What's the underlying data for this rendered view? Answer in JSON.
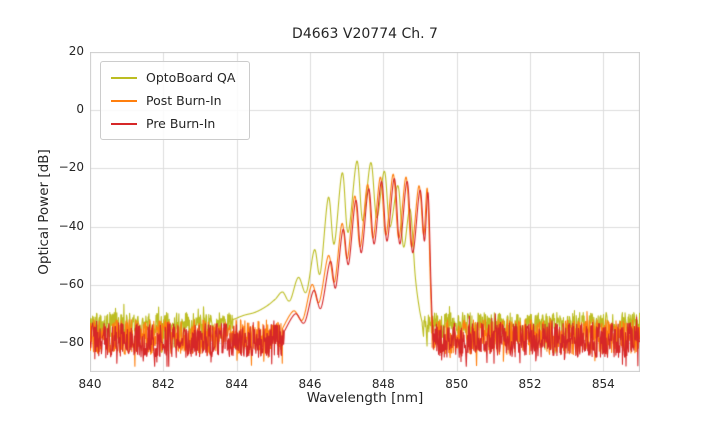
{
  "chart_data": {
    "type": "line",
    "title": "D4663 V20774 Ch. 7",
    "xlabel": "Wavelength [nm]",
    "ylabel": "Optical Power [dB]",
    "xlim": [
      840,
      855
    ],
    "ylim": [
      -90,
      20
    ],
    "xticks": [
      840,
      842,
      844,
      846,
      848,
      850,
      852,
      854
    ],
    "yticks": [
      20,
      0,
      -20,
      -40,
      -60,
      -80
    ],
    "grid": true,
    "grid_color": "#dcdcdc",
    "legend_position": "upper left",
    "series": [
      {
        "name": "OptoBoard QA",
        "color": "#bcbd22",
        "noise": {
          "floor": -74,
          "amplitude": 4.5,
          "regions": [
            [
              840,
              843.9
            ],
            [
              849.06,
              855
            ]
          ]
        },
        "profile": [
          [
            843.9,
            -72
          ],
          [
            844.2,
            -70.5
          ],
          [
            844.5,
            -69.5
          ],
          [
            844.8,
            -67.5
          ],
          [
            845.05,
            -65
          ],
          [
            845.25,
            -62.5
          ],
          [
            845.45,
            -65.5
          ],
          [
            845.68,
            -57.5
          ],
          [
            845.9,
            -62.5
          ],
          [
            846.12,
            -48
          ],
          [
            846.28,
            -56
          ],
          [
            846.5,
            -30
          ],
          [
            846.66,
            -46
          ],
          [
            846.88,
            -21.5
          ],
          [
            847.04,
            -42
          ],
          [
            847.28,
            -17.5
          ],
          [
            847.44,
            -38
          ],
          [
            847.66,
            -18
          ],
          [
            847.82,
            -37
          ],
          [
            848.03,
            -21
          ],
          [
            848.18,
            -40
          ],
          [
            848.4,
            -26
          ],
          [
            848.55,
            -47
          ],
          [
            848.73,
            -34
          ],
          [
            848.87,
            -57
          ],
          [
            848.98,
            -68
          ],
          [
            849.06,
            -73
          ]
        ]
      },
      {
        "name": "Post Burn-In",
        "color": "#ff7f0e",
        "noise": {
          "floor": -78,
          "amplitude": 6,
          "regions": [
            [
              840,
              845.25
            ],
            [
              849.33,
              855
            ]
          ]
        },
        "profile": [
          [
            845.25,
            -75
          ],
          [
            845.55,
            -69
          ],
          [
            845.8,
            -72
          ],
          [
            846.05,
            -60
          ],
          [
            846.25,
            -66
          ],
          [
            846.5,
            -50
          ],
          [
            846.67,
            -59
          ],
          [
            846.87,
            -39
          ],
          [
            847.02,
            -51
          ],
          [
            847.22,
            -29.5
          ],
          [
            847.37,
            -47
          ],
          [
            847.57,
            -25.5
          ],
          [
            847.72,
            -44
          ],
          [
            847.92,
            -23
          ],
          [
            848.07,
            -43
          ],
          [
            848.27,
            -22
          ],
          [
            848.42,
            -44
          ],
          [
            848.62,
            -23
          ],
          [
            848.77,
            -47
          ],
          [
            848.97,
            -26
          ],
          [
            849.1,
            -43
          ],
          [
            849.2,
            -27
          ],
          [
            849.28,
            -58
          ],
          [
            849.33,
            -78
          ]
        ]
      },
      {
        "name": "Pre Burn-In",
        "color": "#d62728",
        "noise": {
          "floor": -79,
          "amplitude": 6,
          "regions": [
            [
              840,
              845.3
            ],
            [
              849.35,
              855
            ]
          ]
        },
        "profile": [
          [
            845.3,
            -76
          ],
          [
            845.6,
            -70
          ],
          [
            845.85,
            -73
          ],
          [
            846.1,
            -62
          ],
          [
            846.3,
            -68
          ],
          [
            846.55,
            -52
          ],
          [
            846.7,
            -61
          ],
          [
            846.9,
            -41
          ],
          [
            847.05,
            -53
          ],
          [
            847.25,
            -31
          ],
          [
            847.4,
            -49
          ],
          [
            847.6,
            -27
          ],
          [
            847.75,
            -46
          ],
          [
            847.95,
            -24.5
          ],
          [
            848.1,
            -45
          ],
          [
            848.3,
            -23.5
          ],
          [
            848.45,
            -46
          ],
          [
            848.65,
            -24.5
          ],
          [
            848.8,
            -49
          ],
          [
            849.0,
            -27.5
          ],
          [
            849.12,
            -45
          ],
          [
            849.22,
            -28.5
          ],
          [
            849.3,
            -60
          ],
          [
            849.35,
            -79
          ]
        ]
      }
    ]
  }
}
